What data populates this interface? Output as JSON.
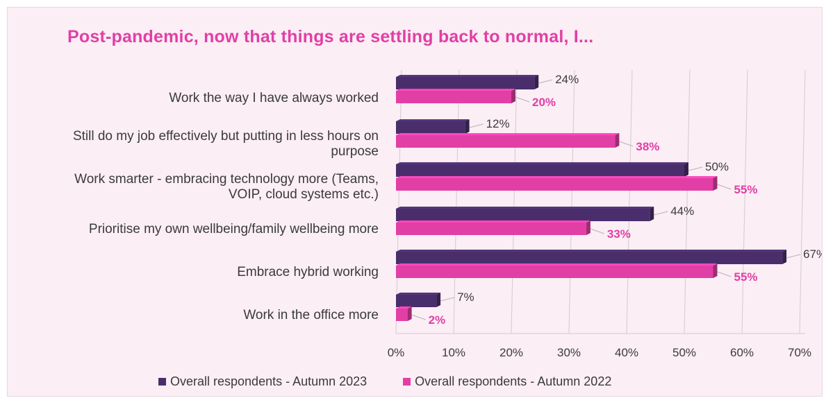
{
  "title": "Post-pandemic, now that things are settling back to normal, I...",
  "colors": {
    "series_2023": "#4a2e6b",
    "series_2022": "#e13fa6",
    "label_2023": "#3a3a3a",
    "label_2022": "#e13fa6",
    "panel_bg": "#fbeef5"
  },
  "legend": {
    "series_2023": "Overall respondents - Autumn 2023",
    "series_2022": "Overall respondents - Autumn 2022"
  },
  "chart_data": {
    "type": "bar",
    "orientation": "horizontal",
    "title": "Post-pandemic, now that things are settling back to normal, I...",
    "categories": [
      "Work the way I have always worked",
      "Still do my job effectively but putting in less hours on purpose",
      "Work smarter - embracing technology more (Teams, VOIP, cloud systems etc.)",
      "Prioritise my own wellbeing/family wellbeing more",
      "Embrace hybrid working",
      "Work in the office more"
    ],
    "category_lines": [
      [
        "Work the way I have always worked"
      ],
      [
        "Still do my job effectively but putting in less hours on",
        "purpose"
      ],
      [
        "Work smarter - embracing technology more (Teams,",
        "VOIP, cloud systems etc.)"
      ],
      [
        "Prioritise my own wellbeing/family wellbeing more"
      ],
      [
        "Embrace hybrid working"
      ],
      [
        "Work in the office more"
      ]
    ],
    "series": [
      {
        "name": "Overall respondents - Autumn 2023",
        "values": [
          24,
          12,
          50,
          44,
          67,
          7
        ],
        "labels": [
          "24%",
          "12%",
          "50%",
          "44%",
          "67%",
          "7%"
        ]
      },
      {
        "name": "Overall respondents - Autumn 2022",
        "values": [
          20,
          38,
          55,
          33,
          55,
          2
        ],
        "labels": [
          "20%",
          "38%",
          "55%",
          "33%",
          "55%",
          "2%"
        ]
      }
    ],
    "xlim": [
      0,
      70
    ],
    "xticks": [
      "0%",
      "10%",
      "20%",
      "30%",
      "40%",
      "50%",
      "60%",
      "70%"
    ],
    "grid": true,
    "legend_position": "bottom"
  }
}
